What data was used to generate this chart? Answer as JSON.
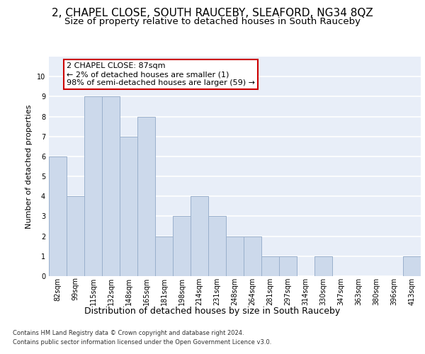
{
  "title1": "2, CHAPEL CLOSE, SOUTH RAUCEBY, SLEAFORD, NG34 8QZ",
  "title2": "Size of property relative to detached houses in South Rauceby",
  "xlabel": "Distribution of detached houses by size in South Rauceby",
  "ylabel": "Number of detached properties",
  "categories": [
    "82sqm",
    "99sqm",
    "115sqm",
    "132sqm",
    "148sqm",
    "165sqm",
    "181sqm",
    "198sqm",
    "214sqm",
    "231sqm",
    "248sqm",
    "264sqm",
    "281sqm",
    "297sqm",
    "314sqm",
    "330sqm",
    "347sqm",
    "363sqm",
    "380sqm",
    "396sqm",
    "413sqm"
  ],
  "values": [
    6,
    4,
    9,
    9,
    7,
    8,
    2,
    3,
    4,
    3,
    2,
    2,
    1,
    1,
    0,
    1,
    0,
    0,
    0,
    0,
    1
  ],
  "bar_color": "#ccd9eb",
  "bar_edge_color": "#9ab0cc",
  "annotation_text": "2 CHAPEL CLOSE: 87sqm\n← 2% of detached houses are smaller (1)\n98% of semi-detached houses are larger (59) →",
  "annotation_box_color": "#ffffff",
  "annotation_box_edge": "#cc0000",
  "ylim": [
    0,
    11
  ],
  "yticks": [
    0,
    1,
    2,
    3,
    4,
    5,
    6,
    7,
    8,
    9,
    10
  ],
  "footer1": "Contains HM Land Registry data © Crown copyright and database right 2024.",
  "footer2": "Contains public sector information licensed under the Open Government Licence v3.0.",
  "bg_color": "#e8eef8",
  "grid_color": "#ffffff",
  "title1_fontsize": 11,
  "title2_fontsize": 9.5,
  "ann_fontsize": 8,
  "ylabel_fontsize": 8,
  "xlabel_fontsize": 9,
  "tick_fontsize": 7
}
